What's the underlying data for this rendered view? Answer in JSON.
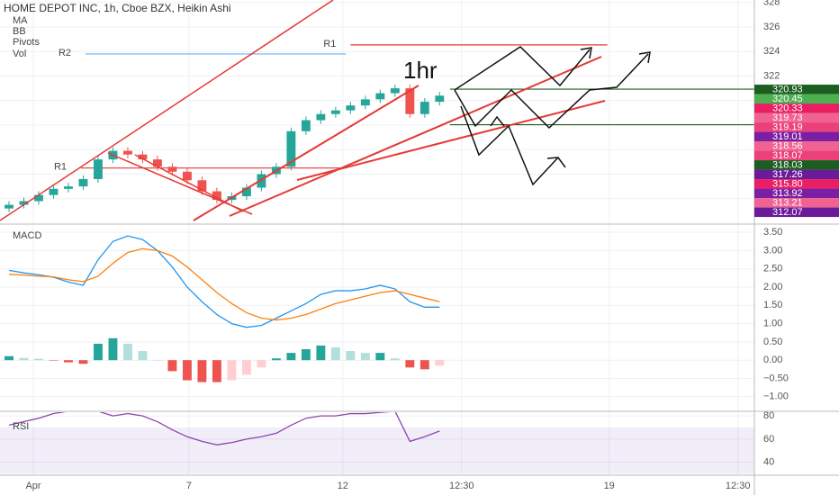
{
  "chart_data": [
    {
      "type": "candlestick",
      "title": "HOME DEPOT INC, 1h, Cboe BZX, Heikin Ashi",
      "indicators": [
        "MA",
        "BB",
        "Pivots",
        "Vol"
      ],
      "annotation": "1hr",
      "open": [
        311.2,
        311.5,
        311.8,
        312.3,
        312.8,
        313.0,
        313.6,
        315.2,
        315.9,
        315.6,
        315.2,
        314.6,
        314.2,
        313.5,
        312.6,
        311.9,
        312.2,
        312.9,
        314.0,
        314.6,
        317.5,
        318.4,
        318.9,
        319.2,
        319.6,
        320.1,
        320.6,
        321.0,
        318.9,
        319.9
      ],
      "high": [
        311.8,
        312.1,
        312.6,
        313.1,
        313.3,
        313.9,
        315.5,
        316.2,
        316.2,
        315.9,
        315.5,
        314.9,
        314.5,
        313.8,
        312.9,
        312.5,
        313.2,
        314.3,
        314.9,
        317.8,
        318.7,
        319.2,
        319.5,
        319.9,
        320.4,
        320.9,
        321.3,
        321.3,
        320.2,
        320.7
      ],
      "low": [
        310.9,
        311.2,
        311.5,
        312.0,
        312.5,
        312.7,
        313.3,
        314.9,
        315.3,
        314.9,
        314.3,
        313.9,
        313.2,
        312.3,
        311.6,
        311.6,
        311.9,
        312.6,
        313.7,
        314.3,
        317.2,
        318.1,
        318.6,
        318.9,
        319.3,
        319.8,
        320.3,
        318.6,
        318.6,
        319.6
      ],
      "close": [
        311.5,
        311.8,
        312.3,
        312.8,
        313.0,
        313.6,
        315.2,
        315.9,
        315.6,
        315.2,
        314.6,
        314.2,
        313.5,
        312.6,
        311.9,
        312.2,
        312.9,
        314.0,
        314.6,
        317.5,
        318.4,
        318.9,
        319.2,
        319.6,
        320.1,
        320.6,
        321.0,
        318.9,
        319.9,
        320.4
      ],
      "up_color": "#26a69a",
      "down_color": "#ef5350",
      "ylim": [
        310,
        328.2
      ],
      "yticks": [
        312,
        314,
        316,
        318,
        320,
        322,
        324,
        326,
        328
      ],
      "xlim": [
        -0.606,
        50.2
      ],
      "xticks": [
        {
          "value": 1.64,
          "label": "Apr"
        },
        {
          "value": 12.12,
          "label": "7"
        },
        {
          "value": 22.48,
          "label": "12"
        },
        {
          "value": 30.48,
          "label": "12:30"
        },
        {
          "value": 40.42,
          "label": "19"
        },
        {
          "value": 49.09,
          "label": "12:30"
        }
      ],
      "levels": [
        {
          "label": "R1",
          "value": 324.54,
          "color": "#e53935",
          "from": 23.0,
          "to": 40.3
        },
        {
          "label": "R2",
          "value": 323.8,
          "color": "#64b5f6",
          "from": 5.15,
          "to": 22.7
        },
        {
          "label": "R1",
          "value": 314.5,
          "color": "#e53935",
          "from": 4.85,
          "to": 22.7
        },
        {
          "value": 320.93,
          "color": "#1b5e20",
          "from": 29.7
        },
        {
          "value": 318.03,
          "color": "#1b5e20",
          "from": 29.7
        }
      ],
      "price_labels": [
        {
          "value": 320.93,
          "label": "320.93",
          "color": "#1b5e20"
        },
        {
          "value": 320.45,
          "label": "320.45",
          "color": "#4caf50"
        },
        {
          "value": 320.33,
          "label": "320.33",
          "color": "#e91e63"
        },
        {
          "value": 319.73,
          "label": "319.73",
          "color": "#f06292"
        },
        {
          "value": 319.19,
          "label": "319.19",
          "color": "#ec407a"
        },
        {
          "value": 319.01,
          "label": "319.01",
          "color": "#7b1fa2"
        },
        {
          "value": 318.56,
          "label": "318.56",
          "color": "#f06292"
        },
        {
          "value": 318.07,
          "label": "318.07",
          "color": "#ec407a"
        },
        {
          "value": 318.03,
          "label": "318.03",
          "color": "#1b5e20"
        },
        {
          "value": 317.26,
          "label": "317.26",
          "color": "#6a1b9a"
        },
        {
          "value": 315.8,
          "label": "315.80",
          "color": "#e91e63"
        },
        {
          "value": 313.92,
          "label": "313.92",
          "color": "#7b1fa2"
        },
        {
          "value": 313.21,
          "label": "313.21",
          "color": "#f06292"
        },
        {
          "value": 312.07,
          "label": "312.07",
          "color": "#6a1b9a"
        }
      ]
    },
    {
      "type": "macd",
      "title": "MACD",
      "series": [
        {
          "color": "#2196f3",
          "values": [
            2.46,
            2.39,
            2.34,
            2.27,
            2.14,
            2.05,
            2.75,
            3.25,
            3.4,
            3.3,
            3.0,
            2.55,
            2.0,
            1.6,
            1.25,
            1.0,
            0.9,
            0.95,
            1.15,
            1.35,
            1.55,
            1.8,
            1.9,
            1.9,
            1.95,
            2.05,
            1.95,
            1.6,
            1.45,
            1.45
          ]
        },
        {
          "color": "#ff7f0e",
          "values": [
            2.35,
            2.33,
            2.3,
            2.28,
            2.2,
            2.15,
            2.3,
            2.65,
            2.95,
            3.05,
            3.0,
            2.85,
            2.55,
            2.2,
            1.85,
            1.55,
            1.3,
            1.15,
            1.1,
            1.15,
            1.25,
            1.4,
            1.55,
            1.65,
            1.75,
            1.85,
            1.9,
            1.8,
            1.7,
            1.6
          ]
        }
      ],
      "histogram": [
        0.11,
        0.06,
        0.04,
        -0.01,
        -0.06,
        -0.1,
        0.45,
        0.6,
        0.45,
        0.25,
        0.0,
        -0.3,
        -0.55,
        -0.6,
        -0.6,
        -0.55,
        -0.4,
        -0.2,
        0.05,
        0.2,
        0.3,
        0.4,
        0.35,
        0.25,
        0.2,
        0.2,
        0.05,
        -0.2,
        -0.25,
        -0.15
      ],
      "histogram_colors": [
        "#26a69a",
        "#b2dfdb",
        "#ffcdd2",
        "#ef5350"
      ],
      "ylim": [
        -1.35,
        3.7
      ],
      "yticks": [
        {
          "value": 3.5,
          "label": "3.50"
        },
        {
          "value": 3,
          "label": "3.00"
        },
        {
          "value": 2.5,
          "label": "2.50"
        },
        {
          "value": 2,
          "label": "2.00"
        },
        {
          "value": 1.5,
          "label": "1.50"
        },
        {
          "value": 1,
          "label": "1.00"
        },
        {
          "value": 0.5,
          "label": "0.50"
        },
        {
          "value": 0,
          "label": "0.00"
        },
        {
          "value": -0.5,
          "label": "−0.50"
        },
        {
          "value": -1,
          "label": "−1.00"
        }
      ]
    },
    {
      "type": "rsi",
      "title": "RSI",
      "color": "#8e44ad",
      "values": [
        72,
        75,
        78,
        82,
        84,
        84,
        84,
        80,
        82,
        80,
        75,
        68,
        62,
        58,
        55,
        57,
        60,
        62,
        65,
        72,
        78,
        80,
        80,
        82,
        82,
        83,
        84,
        58,
        62,
        67
      ],
      "band": [
        30,
        70
      ],
      "band_color": "rgba(149,117,205,0.13)",
      "ylim": [
        28.8,
        83.2
      ],
      "yticks": [
        40,
        60,
        80
      ]
    }
  ]
}
